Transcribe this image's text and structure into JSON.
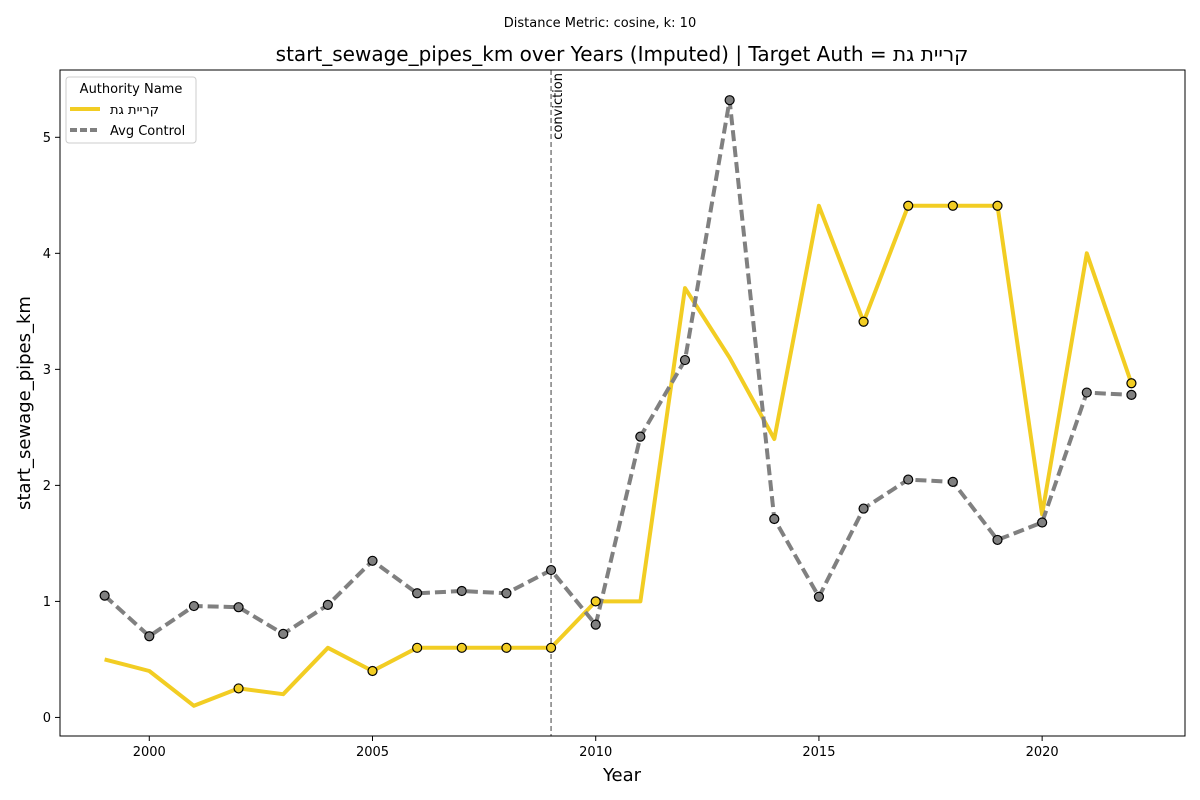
{
  "chart_data": {
    "type": "line",
    "suptitle": "Distance Metric: cosine, k: 10",
    "title": "start_sewage_pipes_km over Years (Imputed) | Target Auth = קריית גת",
    "xlabel": "Year",
    "ylabel": "start_sewage_pipes_km",
    "xlim": [
      1998,
      2023.2
    ],
    "ylim": [
      -0.16,
      5.58
    ],
    "xticks": [
      2000,
      2005,
      2010,
      2015,
      2020
    ],
    "yticks": [
      0,
      1,
      2,
      3,
      4,
      5
    ],
    "grid": false,
    "legend": {
      "title": "Authority Name",
      "position": "top-left"
    },
    "annotation": {
      "x": 2009,
      "label": "conviction"
    },
    "series": [
      {
        "name": "קריית גת",
        "color": "#F2CD23",
        "style": "solid",
        "x": [
          1999,
          2000,
          2001,
          2002,
          2003,
          2004,
          2005,
          2006,
          2007,
          2008,
          2009,
          2010,
          2011,
          2012,
          2013,
          2014,
          2015,
          2016,
          2017,
          2018,
          2019,
          2020,
          2021,
          2022
        ],
        "values": [
          0.5,
          0.4,
          0.1,
          0.25,
          0.2,
          0.6,
          0.4,
          0.6,
          0.6,
          0.6,
          0.6,
          1.0,
          1.0,
          3.7,
          3.1,
          2.4,
          4.41,
          3.41,
          4.41,
          4.41,
          4.41,
          1.75,
          4.0,
          2.88
        ],
        "markers": [
          false,
          false,
          false,
          true,
          false,
          false,
          true,
          true,
          true,
          true,
          true,
          true,
          false,
          false,
          false,
          false,
          false,
          true,
          true,
          true,
          true,
          false,
          false,
          true
        ]
      },
      {
        "name": "Avg Control",
        "color": "#808080",
        "style": "dashed",
        "x": [
          1999,
          2000,
          2001,
          2002,
          2003,
          2004,
          2005,
          2006,
          2007,
          2008,
          2009,
          2010,
          2011,
          2012,
          2013,
          2014,
          2015,
          2016,
          2017,
          2018,
          2019,
          2020,
          2021,
          2022
        ],
        "values": [
          1.05,
          0.7,
          0.96,
          0.95,
          0.72,
          0.97,
          1.35,
          1.07,
          1.09,
          1.07,
          1.27,
          0.8,
          2.42,
          3.08,
          5.32,
          1.71,
          1.04,
          1.8,
          2.05,
          2.03,
          1.53,
          1.68,
          2.8,
          2.78
        ],
        "markers": [
          true,
          true,
          true,
          true,
          true,
          true,
          true,
          true,
          true,
          true,
          true,
          true,
          true,
          true,
          true,
          true,
          true,
          true,
          true,
          true,
          true,
          true,
          true,
          true
        ]
      }
    ]
  }
}
